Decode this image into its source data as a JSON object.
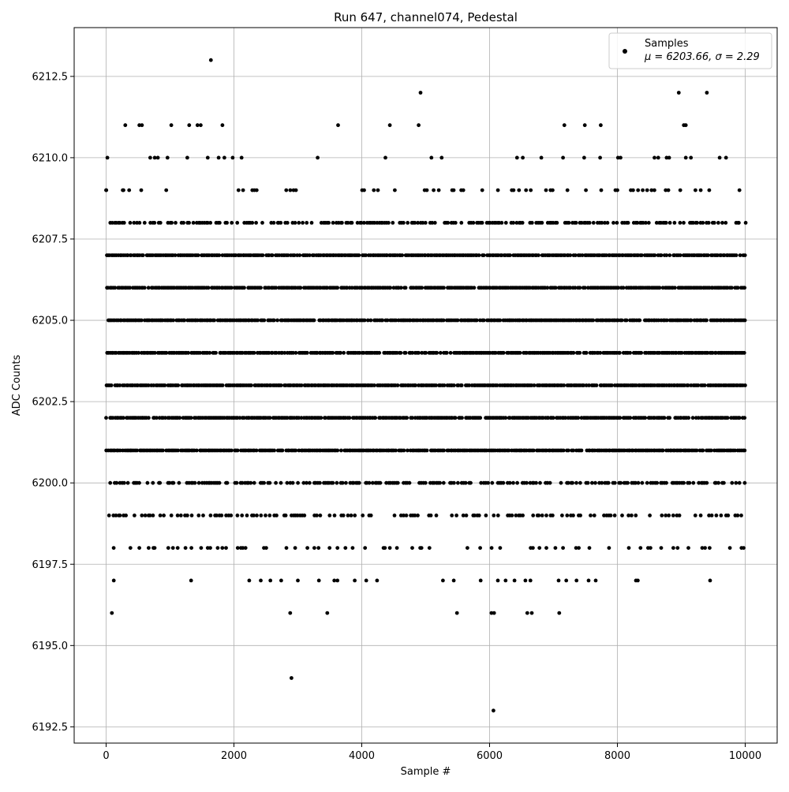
{
  "chart_data": {
    "type": "scatter",
    "title": "Run 647, channel074, Pedestal",
    "xlabel": "Sample #",
    "ylabel": "ADC Counts",
    "xlim": [
      -500,
      10500
    ],
    "ylim": [
      6192,
      6214
    ],
    "x_ticks": [
      0,
      2000,
      4000,
      6000,
      8000,
      10000
    ],
    "x_tick_labels": [
      "0",
      "2000",
      "4000",
      "6000",
      "8000",
      "10000"
    ],
    "y_ticks": [
      6192.5,
      6195.0,
      6197.5,
      6200.0,
      6202.5,
      6205.0,
      6207.5,
      6210.0,
      6212.5
    ],
    "y_tick_labels": [
      "6192.5",
      "6195.0",
      "6197.5",
      "6200.0",
      "6202.5",
      "6205.0",
      "6207.5",
      "6210.0",
      "6212.5"
    ],
    "grid": true,
    "legend_position": "top-right",
    "marker_color": "#000000",
    "series": [
      {
        "name": "Samples",
        "stats_label": "μ = 6203.66, σ = 2.29",
        "mean": 6203.66,
        "sigma": 2.29,
        "n_samples": 10000,
        "x_range": [
          0,
          9999
        ],
        "dense_levels": [
          6201,
          6202,
          6203,
          6204,
          6205,
          6206,
          6207
        ],
        "medium_levels": [
          6200,
          6208
        ],
        "sparse_levels": [
          6199,
          6198,
          6209
        ],
        "outliers": [
          {
            "x": 90,
            "y": 6196
          },
          {
            "x": 2880,
            "y": 6196
          },
          {
            "x": 3460,
            "y": 6196
          },
          {
            "x": 5490,
            "y": 6196
          },
          {
            "x": 6030,
            "y": 6196
          },
          {
            "x": 6070,
            "y": 6196
          },
          {
            "x": 6590,
            "y": 6196
          },
          {
            "x": 6660,
            "y": 6196
          },
          {
            "x": 7090,
            "y": 6196
          },
          {
            "x": 2900,
            "y": 6194
          },
          {
            "x": 6060,
            "y": 6193
          },
          {
            "x": 120,
            "y": 6197
          },
          {
            "x": 1330,
            "y": 6197
          },
          {
            "x": 2240,
            "y": 6197
          },
          {
            "x": 2420,
            "y": 6197
          },
          {
            "x": 2570,
            "y": 6197
          },
          {
            "x": 2740,
            "y": 6197
          },
          {
            "x": 3000,
            "y": 6197
          },
          {
            "x": 3330,
            "y": 6197
          },
          {
            "x": 3570,
            "y": 6197
          },
          {
            "x": 3620,
            "y": 6197
          },
          {
            "x": 3890,
            "y": 6197
          },
          {
            "x": 4070,
            "y": 6197
          },
          {
            "x": 4240,
            "y": 6197
          },
          {
            "x": 5270,
            "y": 6197
          },
          {
            "x": 5440,
            "y": 6197
          },
          {
            "x": 5860,
            "y": 6197
          },
          {
            "x": 6130,
            "y": 6197
          },
          {
            "x": 6250,
            "y": 6197
          },
          {
            "x": 6390,
            "y": 6197
          },
          {
            "x": 6560,
            "y": 6197
          },
          {
            "x": 6640,
            "y": 6197
          },
          {
            "x": 7080,
            "y": 6197
          },
          {
            "x": 7200,
            "y": 6197
          },
          {
            "x": 7360,
            "y": 6197
          },
          {
            "x": 7550,
            "y": 6197
          },
          {
            "x": 7660,
            "y": 6197
          },
          {
            "x": 8290,
            "y": 6197
          },
          {
            "x": 8320,
            "y": 6197
          },
          {
            "x": 9450,
            "y": 6197
          },
          {
            "x": 0,
            "y": 6209
          },
          {
            "x": 260,
            "y": 6209
          },
          {
            "x": 20,
            "y": 6210
          },
          {
            "x": 690,
            "y": 6210
          },
          {
            "x": 760,
            "y": 6210
          },
          {
            "x": 810,
            "y": 6210
          },
          {
            "x": 960,
            "y": 6210
          },
          {
            "x": 1270,
            "y": 6210
          },
          {
            "x": 1590,
            "y": 6210
          },
          {
            "x": 1760,
            "y": 6210
          },
          {
            "x": 1850,
            "y": 6210
          },
          {
            "x": 1980,
            "y": 6210
          },
          {
            "x": 2120,
            "y": 6210
          },
          {
            "x": 3310,
            "y": 6210
          },
          {
            "x": 4370,
            "y": 6210
          },
          {
            "x": 5090,
            "y": 6210
          },
          {
            "x": 5250,
            "y": 6210
          },
          {
            "x": 6430,
            "y": 6210
          },
          {
            "x": 6520,
            "y": 6210
          },
          {
            "x": 6810,
            "y": 6210
          },
          {
            "x": 7150,
            "y": 6210
          },
          {
            "x": 7480,
            "y": 6210
          },
          {
            "x": 7730,
            "y": 6210
          },
          {
            "x": 8010,
            "y": 6210
          },
          {
            "x": 8050,
            "y": 6210
          },
          {
            "x": 8580,
            "y": 6210
          },
          {
            "x": 8640,
            "y": 6210
          },
          {
            "x": 8770,
            "y": 6210
          },
          {
            "x": 8810,
            "y": 6210
          },
          {
            "x": 9070,
            "y": 6210
          },
          {
            "x": 9150,
            "y": 6210
          },
          {
            "x": 9600,
            "y": 6210
          },
          {
            "x": 9700,
            "y": 6210
          },
          {
            "x": 300,
            "y": 6211
          },
          {
            "x": 520,
            "y": 6211
          },
          {
            "x": 560,
            "y": 6211
          },
          {
            "x": 1020,
            "y": 6211
          },
          {
            "x": 1300,
            "y": 6211
          },
          {
            "x": 1430,
            "y": 6211
          },
          {
            "x": 1480,
            "y": 6211
          },
          {
            "x": 1820,
            "y": 6211
          },
          {
            "x": 3630,
            "y": 6211
          },
          {
            "x": 4440,
            "y": 6211
          },
          {
            "x": 4890,
            "y": 6211
          },
          {
            "x": 7170,
            "y": 6211
          },
          {
            "x": 7490,
            "y": 6211
          },
          {
            "x": 7740,
            "y": 6211
          },
          {
            "x": 9040,
            "y": 6211
          },
          {
            "x": 9070,
            "y": 6211
          },
          {
            "x": 4920,
            "y": 6212
          },
          {
            "x": 8960,
            "y": 6212
          },
          {
            "x": 9400,
            "y": 6212
          },
          {
            "x": 1640,
            "y": 6213
          }
        ]
      }
    ]
  }
}
